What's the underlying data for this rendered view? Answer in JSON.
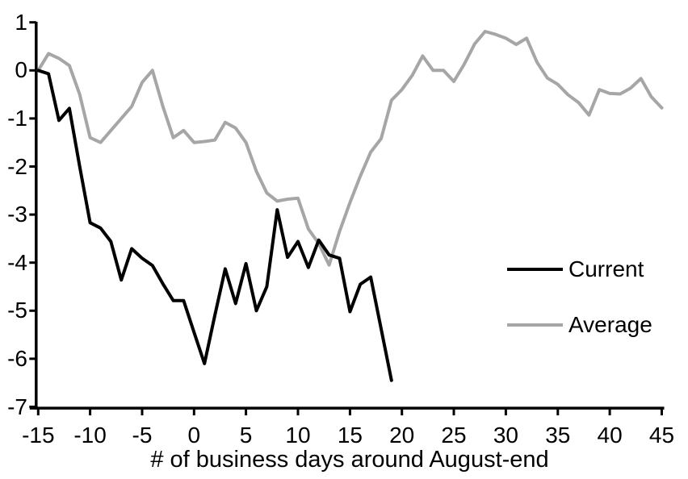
{
  "colors": {
    "current": "#000000",
    "average": "#A6A6A6",
    "axis": "#000000",
    "background": "#FFFFFF"
  },
  "legend": {
    "items": [
      {
        "label": "Current",
        "color": "#000000"
      },
      {
        "label": "Average",
        "color": "#A6A6A6"
      }
    ]
  },
  "chart_data": {
    "type": "line",
    "title": "",
    "xlabel": "# of business days around August-end",
    "ylabel": "",
    "xlim": [
      -15,
      45
    ],
    "ylim": [
      -7,
      1
    ],
    "grid": false,
    "legend_position": "middle-right",
    "xticks": [
      -15,
      -10,
      -5,
      0,
      5,
      10,
      15,
      20,
      25,
      30,
      35,
      40,
      45
    ],
    "yticks": [
      1,
      0,
      -1,
      -2,
      -3,
      -4,
      -5,
      -6,
      -7
    ],
    "series": [
      {
        "name": "Average",
        "color": "#A6A6A6",
        "x": [
          -15,
          -14,
          -13,
          -12,
          -11,
          -10,
          -9,
          -8,
          -7,
          -6,
          -5,
          -4,
          -3,
          -2,
          -1,
          0,
          1,
          2,
          3,
          4,
          5,
          6,
          7,
          8,
          9,
          10,
          11,
          12,
          13,
          14,
          15,
          16,
          17,
          18,
          19,
          20,
          21,
          22,
          23,
          24,
          25,
          26,
          27,
          28,
          29,
          30,
          31,
          32,
          33,
          34,
          35,
          36,
          37,
          38,
          39,
          40,
          41,
          42,
          43,
          44,
          45
        ],
        "values": [
          0.0,
          0.35,
          0.25,
          0.1,
          -0.5,
          -1.4,
          -1.5,
          -1.25,
          -1.0,
          -0.75,
          -0.25,
          0.0,
          -0.75,
          -1.4,
          -1.25,
          -1.5,
          -1.48,
          -1.45,
          -1.08,
          -1.2,
          -1.5,
          -2.1,
          -2.55,
          -2.72,
          -2.68,
          -2.66,
          -3.3,
          -3.6,
          -4.05,
          -3.35,
          -2.75,
          -2.2,
          -1.7,
          -1.42,
          -0.62,
          -0.4,
          -0.1,
          0.3,
          0.0,
          0.0,
          -0.23,
          0.13,
          0.55,
          0.81,
          0.75,
          0.67,
          0.54,
          0.67,
          0.17,
          -0.16,
          -0.29,
          -0.51,
          -0.67,
          -0.93,
          -0.4,
          -0.48,
          -0.49,
          -0.37,
          -0.17,
          -0.55,
          -0.78
        ]
      },
      {
        "name": "Current",
        "color": "#000000",
        "x": [
          -15,
          -14,
          -13,
          -12,
          -11,
          -10,
          -9,
          -8,
          -7,
          -6,
          -5,
          -4,
          -3,
          -2,
          -1,
          0,
          1,
          2,
          3,
          4,
          5,
          6,
          7,
          8,
          9,
          10,
          11,
          12,
          13,
          14,
          15,
          16,
          17,
          18,
          19
        ],
        "values": [
          0.0,
          -0.07,
          -1.04,
          -0.79,
          -2.0,
          -3.17,
          -3.28,
          -3.56,
          -4.36,
          -3.71,
          -3.91,
          -4.06,
          -4.44,
          -4.79,
          -4.79,
          -5.45,
          -6.1,
          -5.1,
          -4.13,
          -4.85,
          -4.02,
          -5.0,
          -4.5,
          -2.9,
          -3.89,
          -3.56,
          -4.1,
          -3.53,
          -3.84,
          -3.91,
          -5.02,
          -4.45,
          -4.3,
          -5.38,
          -6.45
        ]
      }
    ]
  }
}
